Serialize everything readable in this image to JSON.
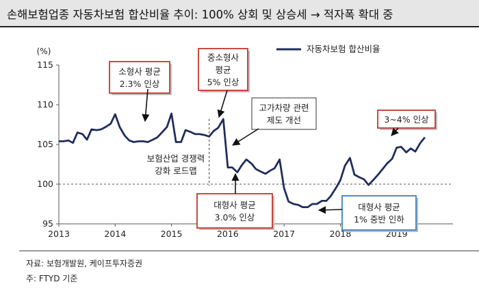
{
  "title": "손해보험업종 자동차보험 합산비율 추이: 100% 상회 및 상승세 → 적자폭 확대 중",
  "source_note": "자료: 보험개발원, 케이프투자증권",
  "footnote": "주: FTYD 기준",
  "colors": {
    "line": "#1f2d5c",
    "red_box": "#c0392b",
    "blue_box": "#3a7fc1",
    "reference": "#555555"
  },
  "chart_data": {
    "type": "line",
    "ylabel": "(%)",
    "ylim": [
      95,
      115
    ],
    "yticks": [
      "115",
      "110",
      "105",
      "100",
      "95"
    ],
    "xlim": [
      2013,
      2020
    ],
    "xticks": [
      "2013",
      "2014",
      "2015",
      "2016",
      "2017",
      "2018",
      "2019"
    ],
    "legend_position": "top-right",
    "reference_line_y": 100,
    "series": [
      {
        "name": "자동차보험 합산비율",
        "x": [
          2013.0,
          2013.08,
          2013.17,
          2013.25,
          2013.33,
          2013.42,
          2013.5,
          2013.58,
          2013.67,
          2013.75,
          2013.83,
          2013.92,
          2014.0,
          2014.08,
          2014.17,
          2014.25,
          2014.33,
          2014.42,
          2014.5,
          2014.58,
          2014.67,
          2014.75,
          2014.83,
          2014.92,
          2015.0,
          2015.08,
          2015.17,
          2015.25,
          2015.33,
          2015.42,
          2015.5,
          2015.58,
          2015.67,
          2015.75,
          2015.83,
          2015.92,
          2016.0,
          2016.08,
          2016.17,
          2016.25,
          2016.33,
          2016.42,
          2016.5,
          2016.58,
          2016.67,
          2016.75,
          2016.83,
          2016.92,
          2017.0,
          2017.08,
          2017.17,
          2017.25,
          2017.33,
          2017.42,
          2017.5,
          2017.58,
          2017.67,
          2017.75,
          2017.83,
          2017.92,
          2018.0,
          2018.08,
          2018.17,
          2018.25,
          2018.33,
          2018.42,
          2018.5,
          2018.58,
          2018.67,
          2018.75,
          2018.83,
          2018.92,
          2019.0,
          2019.08,
          2019.17,
          2019.25,
          2019.33,
          2019.42,
          2019.5
        ],
        "values": [
          105.4,
          105.4,
          105.5,
          105.2,
          106.5,
          106.3,
          105.6,
          106.9,
          106.8,
          106.9,
          107.2,
          107.6,
          108.8,
          107.2,
          106.1,
          105.5,
          105.3,
          105.4,
          105.4,
          105.3,
          105.6,
          105.9,
          106.5,
          107.2,
          108.9,
          105.3,
          105.3,
          106.8,
          106.6,
          106.3,
          106.3,
          106.2,
          106.0,
          106.7,
          107.1,
          108.2,
          102.1,
          102.1,
          101.5,
          102.4,
          103.1,
          102.6,
          101.9,
          101.6,
          101.3,
          101.7,
          102.0,
          103.1,
          99.5,
          97.8,
          97.5,
          97.4,
          97.1,
          97.1,
          97.5,
          97.5,
          97.9,
          97.9,
          98.5,
          99.5,
          100.5,
          102.3,
          103.3,
          101.2,
          100.9,
          100.6,
          99.9,
          100.5,
          101.2,
          101.9,
          102.6,
          103.2,
          104.6,
          104.7,
          104.0,
          104.5,
          104.1,
          105.2,
          105.9
        ]
      }
    ],
    "dashed_marker_x": 2015.67,
    "annotations": [
      {
        "lines": [
          "소형사 평균",
          "2.3% 인상"
        ],
        "style": "red",
        "anchor": [
          2014.5,
          105.4
        ]
      },
      {
        "lines": [
          "중소형사",
          "평균",
          "5% 인상"
        ],
        "style": "red",
        "anchor": [
          2015.9,
          108.2
        ]
      },
      {
        "lines": [
          "고가차량 관련",
          "제도 개선"
        ],
        "style": "plain",
        "anchor": [
          2016.05,
          104.2
        ]
      },
      {
        "lines": [
          "보험산업 경쟁력",
          "강화 로드맵"
        ],
        "style": "text"
      },
      {
        "lines": [
          "대형사 평균",
          "3.0% 인상"
        ],
        "style": "red",
        "anchor": [
          2016.05,
          102.0
        ]
      },
      {
        "lines": [
          "대형사 평균",
          "1% 중반 인하"
        ],
        "style": "blue",
        "anchor": [
          2017.58,
          97.4
        ]
      },
      {
        "lines": [
          "3~4% 인상"
        ],
        "style": "red",
        "anchor": [
          2019.0,
          105.0
        ]
      }
    ]
  }
}
